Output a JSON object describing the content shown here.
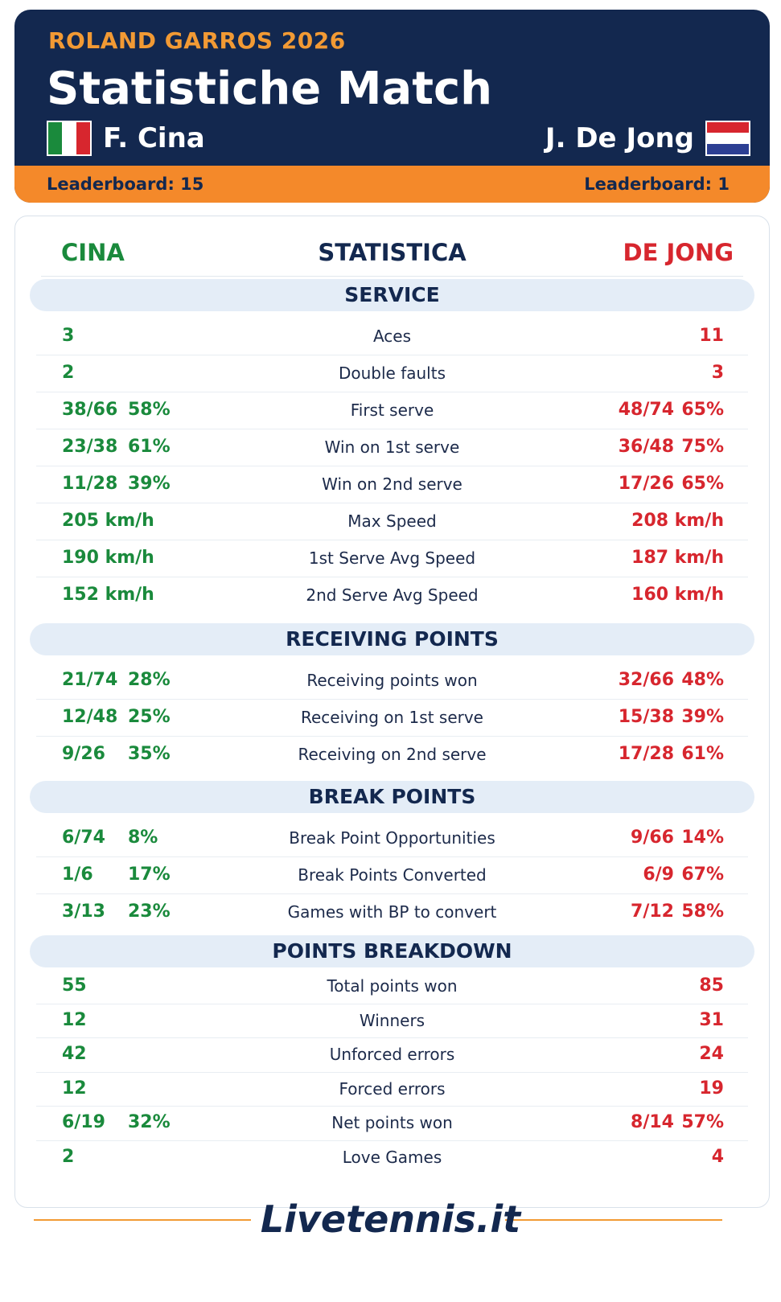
{
  "header": {
    "event": "ROLAND GARROS 2026",
    "title": "Statistiche Match",
    "player1": {
      "name": "F. Cina",
      "leaderboard": "Leaderboard: 15",
      "flag_colors": [
        "#1a8a3c",
        "#ffffff",
        "#d7262e"
      ]
    },
    "player2": {
      "name": "J. De Jong",
      "leaderboard": "Leaderboard: 1",
      "flag_colors": [
        "#d7262e",
        "#ffffff",
        "#2c3f93"
      ]
    },
    "colors": {
      "navy": "#13284f",
      "orange": "#f4892a",
      "green": "#1a8a3c",
      "red": "#d7262e"
    }
  },
  "columns": {
    "left": "CINA",
    "center": "STATISTICA",
    "right": "DE JONG"
  },
  "sections": [
    {
      "title": "SERVICE",
      "rows": [
        {
          "label": "Aces",
          "left": "3",
          "left_pct": "",
          "right": "11",
          "right_pct": ""
        },
        {
          "label": "Double faults",
          "left": "2",
          "left_pct": "",
          "right": "3",
          "right_pct": ""
        },
        {
          "label": "First serve",
          "left": "38/66",
          "left_pct": "58%",
          "right": "48/74",
          "right_pct": "65%"
        },
        {
          "label": "Win on 1st serve",
          "left": "23/38",
          "left_pct": "61%",
          "right": "36/48",
          "right_pct": "75%"
        },
        {
          "label": "Win on 2nd serve",
          "left": "11/28",
          "left_pct": "39%",
          "right": "17/26",
          "right_pct": "65%"
        },
        {
          "label": "Max Speed",
          "left": "205 km/h",
          "left_pct": "",
          "right": "208 km/h",
          "right_pct": ""
        },
        {
          "label": "1st Serve Avg Speed",
          "left": "190 km/h",
          "left_pct": "",
          "right": "187 km/h",
          "right_pct": ""
        },
        {
          "label": "2nd Serve Avg Speed",
          "left": "152 km/h",
          "left_pct": "",
          "right": "160 km/h",
          "right_pct": ""
        }
      ]
    },
    {
      "title": "RECEIVING POINTS",
      "rows": [
        {
          "label": "Receiving points won",
          "left": "21/74",
          "left_pct": "28%",
          "right": "32/66",
          "right_pct": "48%"
        },
        {
          "label": "Receiving on 1st serve",
          "left": "12/48",
          "left_pct": "25%",
          "right": "15/38",
          "right_pct": "39%"
        },
        {
          "label": "Receiving on 2nd serve",
          "left": "9/26",
          "left_pct": "35%",
          "right": "17/28",
          "right_pct": "61%"
        }
      ]
    },
    {
      "title": "BREAK POINTS",
      "rows": [
        {
          "label": "Break Point Opportunities",
          "left": "6/74",
          "left_pct": "8%",
          "right": "9/66",
          "right_pct": "14%"
        },
        {
          "label": "Break Points Converted",
          "left": "1/6",
          "left_pct": "17%",
          "right": "6/9",
          "right_pct": "67%"
        },
        {
          "label": "Games with BP to convert",
          "left": "3/13",
          "left_pct": "23%",
          "right": "7/12",
          "right_pct": "58%"
        }
      ]
    },
    {
      "title": "POINTS BREAKDOWN",
      "rows": [
        {
          "label": "Total points won",
          "left": "55",
          "left_pct": "",
          "right": "85",
          "right_pct": ""
        },
        {
          "label": "Winners",
          "left": "12",
          "left_pct": "",
          "right": "31",
          "right_pct": ""
        },
        {
          "label": "Unforced errors",
          "left": "42",
          "left_pct": "",
          "right": "24",
          "right_pct": ""
        },
        {
          "label": "Forced errors",
          "left": "12",
          "left_pct": "",
          "right": "19",
          "right_pct": ""
        },
        {
          "label": "Net points won",
          "left": "6/19",
          "left_pct": "32%",
          "right": "8/14",
          "right_pct": "57%"
        },
        {
          "label": "Love Games",
          "left": "2",
          "left_pct": "",
          "right": "4",
          "right_pct": ""
        }
      ]
    }
  ],
  "footer": {
    "brand": "Livetennis.it"
  }
}
